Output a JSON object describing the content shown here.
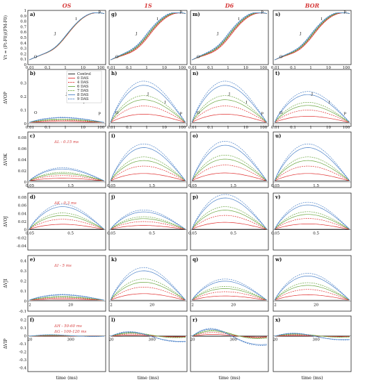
{
  "columns": [
    "OS",
    "1S",
    "D6",
    "BOR"
  ],
  "x_axis_label": "time (ms)",
  "legend": [
    {
      "name": "Control",
      "color": "#111111",
      "dash": "solid"
    },
    {
      "name": "0 DAS",
      "color": "#e03030",
      "dash": "solid"
    },
    {
      "name": "4 DAS",
      "color": "#e03030",
      "dash": "dashed"
    },
    {
      "name": "6 DAS",
      "color": "#6aa640",
      "dash": "solid"
    },
    {
      "name": "7 DAS",
      "color": "#6aa640",
      "dash": "dashed"
    },
    {
      "name": "8 DAS",
      "color": "#4a80c8",
      "dash": "solid"
    },
    {
      "name": "9 DAS",
      "color": "#4a80c8",
      "dash": "dashed"
    }
  ],
  "chart_data": [
    {
      "row": 1,
      "type": "line",
      "ylabel": "Vt = (Ft-F0)/(FM-F0)",
      "xscale": "log",
      "xticks": [
        "0.01",
        "0.1",
        "1",
        "10",
        "100"
      ],
      "yticks": [
        "0",
        "0.1",
        "0.2",
        "0.3",
        "0.4",
        "0.5",
        "0.6",
        "0.7",
        "0.8",
        "0.9",
        "1"
      ],
      "ylim": [
        0,
        1.0
      ],
      "phase_labels": [
        "O",
        "J",
        "I",
        "P"
      ],
      "panels": [
        {
          "letter": "a)",
          "series_spread": 0.03
        },
        {
          "letter": "g)",
          "series_spread": 0.12
        },
        {
          "letter": "m)",
          "series_spread": 0.12
        },
        {
          "letter": "s)",
          "series_spread": 0.1
        }
      ]
    },
    {
      "row": 2,
      "type": "line",
      "ylabel": "ΔVOP",
      "xscale": "log",
      "xticks": [
        "0.01",
        "0.1",
        "1",
        "10",
        "100"
      ],
      "yticks": [
        "0",
        "0.1",
        "0.2",
        "0.3"
      ],
      "ylim": [
        -0.02,
        0.4
      ],
      "phase_labels": [
        "O",
        "J",
        "I",
        "P"
      ],
      "panels": [
        {
          "letter": "b)",
          "peak": 0.04
        },
        {
          "letter": "h)",
          "peak": 0.32
        },
        {
          "letter": "n)",
          "peak": 0.32
        },
        {
          "letter": "t)",
          "peak": 0.24
        }
      ]
    },
    {
      "row": 3,
      "type": "line",
      "ylabel": "ΔVOK",
      "annotation": "ΔL - 0.15 ms",
      "xticks": [
        "0.05",
        "1.5"
      ],
      "yticks": [
        "0",
        "0.02",
        "0.04",
        "0.06",
        "0.08"
      ],
      "ylim": [
        -0.01,
        0.09
      ],
      "panels": [
        {
          "letter": "c)",
          "peak": 0.025
        },
        {
          "letter": "i)",
          "peak": 0.07
        },
        {
          "letter": "o)",
          "peak": 0.075
        },
        {
          "letter": "u)",
          "peak": 0.07
        }
      ]
    },
    {
      "row": 4,
      "type": "line",
      "ylabel": "ΔVOJ",
      "annotation": "ΔK - 0.3 ms",
      "xticks": [
        "0.05",
        "0.5"
      ],
      "yticks": [
        "-0.04",
        "-0.02",
        "0",
        "0.02",
        "0.04",
        "0.06",
        "0.08"
      ],
      "ylim": [
        -0.05,
        0.09
      ],
      "panels": [
        {
          "letter": "d)",
          "peak": 0.065
        },
        {
          "letter": "j)",
          "peak": 0.05
        },
        {
          "letter": "p)",
          "peak": 0.09
        },
        {
          "letter": "v)",
          "peak": 0.07
        }
      ]
    },
    {
      "row": 5,
      "type": "line",
      "ylabel": "ΔVJI",
      "annotation": "ΔI - 5 ms",
      "xticks": [
        "2",
        "20"
      ],
      "yticks": [
        "-0.1",
        "0",
        "0.1",
        "0.2",
        "0.3",
        "0.4"
      ],
      "ylim": [
        -0.1,
        0.45
      ],
      "panels": [
        {
          "letter": "e)",
          "peak": 0.06
        },
        {
          "letter": "k)",
          "peak": 0.34
        },
        {
          "letter": "q)",
          "peak": 0.22
        },
        {
          "letter": "w)",
          "peak": 0.28
        }
      ]
    },
    {
      "row": 6,
      "type": "line",
      "ylabel": "ΔVIP",
      "annotation": "ΔH - 50-60 ms",
      "annotation2": "ΔG - 100-120 ms",
      "xticks": [
        "20",
        "300"
      ],
      "yticks": [
        "-0.4",
        "-0.3",
        "-0.2",
        "-0.1",
        "0",
        "0.1",
        "0.2"
      ],
      "ylim": [
        -0.45,
        0.25
      ],
      "panels": [
        {
          "letter": "f)",
          "peak": 0.03
        },
        {
          "letter": "l)",
          "peak": 0.12
        },
        {
          "letter": "r)",
          "peak": 0.2
        },
        {
          "letter": "x)",
          "peak": 0.08
        }
      ]
    }
  ]
}
